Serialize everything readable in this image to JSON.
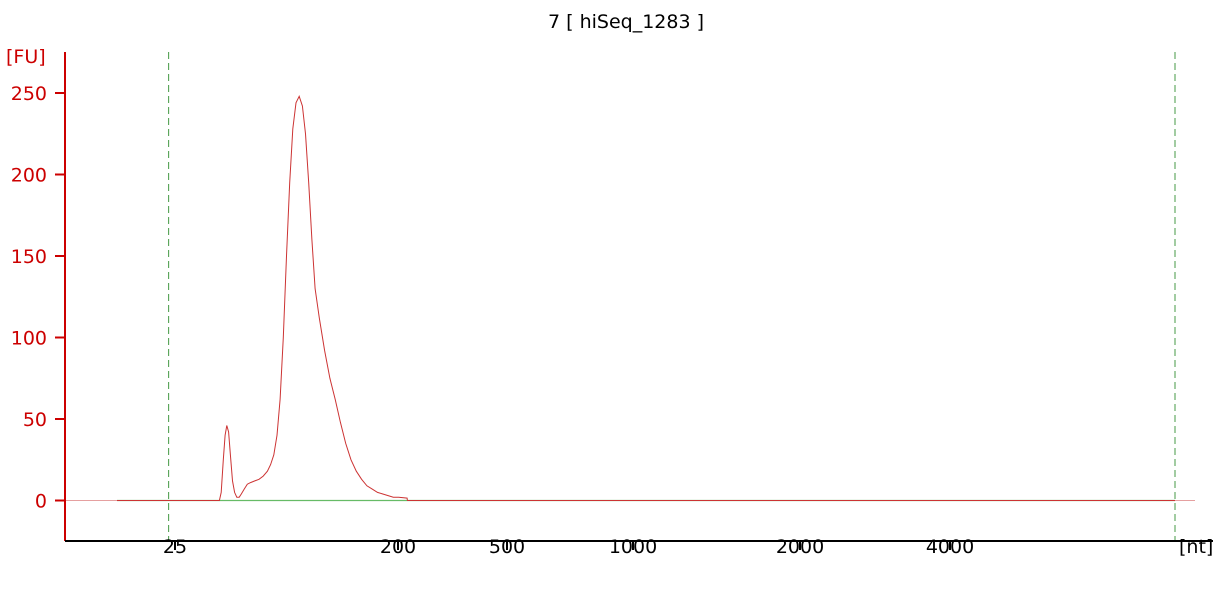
{
  "chart_data": {
    "type": "line",
    "title": "7  [ hiSeq_1283 ]",
    "ylabel": "[FU]",
    "xlabel": "[nt]",
    "ylim": [
      -25,
      265
    ],
    "yticks": [
      0,
      50,
      100,
      150,
      200,
      250
    ],
    "xticks": [
      "25",
      "200",
      "500",
      "1000",
      "2000",
      "4000"
    ],
    "colors": {
      "trace": "#cc3333",
      "baseline": "#66bb66",
      "yaxis": "#cc0000",
      "xaxis": "#000000",
      "marker": "#449944"
    },
    "series": [
      {
        "points": [
          [
            0.0,
            0
          ],
          [
            0.0968,
            0
          ],
          [
            0.0985,
            5
          ],
          [
            0.1005,
            25
          ],
          [
            0.1022,
            40
          ],
          [
            0.1038,
            46
          ],
          [
            0.1055,
            42
          ],
          [
            0.1072,
            28
          ],
          [
            0.1092,
            12
          ],
          [
            0.1112,
            5
          ],
          [
            0.1132,
            2
          ],
          [
            0.1155,
            2
          ],
          [
            0.1175,
            4
          ],
          [
            0.1202,
            7
          ],
          [
            0.1232,
            10
          ],
          [
            0.1262,
            11
          ],
          [
            0.1302,
            12
          ],
          [
            0.1342,
            13
          ],
          [
            0.1382,
            15
          ],
          [
            0.1422,
            18
          ],
          [
            0.1452,
            22
          ],
          [
            0.1482,
            28
          ],
          [
            0.1512,
            40
          ],
          [
            0.1542,
            62
          ],
          [
            0.1572,
            100
          ],
          [
            0.1602,
            150
          ],
          [
            0.1632,
            195
          ],
          [
            0.1662,
            228
          ],
          [
            0.1692,
            244
          ],
          [
            0.1722,
            248
          ],
          [
            0.1752,
            242
          ],
          [
            0.1782,
            225
          ],
          [
            0.1812,
            195
          ],
          [
            0.1842,
            160
          ],
          [
            0.1872,
            130
          ],
          [
            0.1912,
            112
          ],
          [
            0.1962,
            92
          ],
          [
            0.2012,
            75
          ],
          [
            0.2062,
            62
          ],
          [
            0.2112,
            48
          ],
          [
            0.2162,
            35
          ],
          [
            0.2212,
            25
          ],
          [
            0.2262,
            18
          ],
          [
            0.2312,
            13
          ],
          [
            0.2362,
            9
          ],
          [
            0.2412,
            7
          ],
          [
            0.2462,
            5
          ],
          [
            0.2512,
            4
          ],
          [
            0.2562,
            3
          ],
          [
            0.2612,
            2
          ],
          [
            0.2662,
            2
          ],
          [
            0.2742,
            1.5
          ],
          [
            0.2745,
            0
          ],
          [
            1.0,
            0
          ]
        ]
      }
    ],
    "markers": [
      0.0488,
      1.0
    ]
  }
}
